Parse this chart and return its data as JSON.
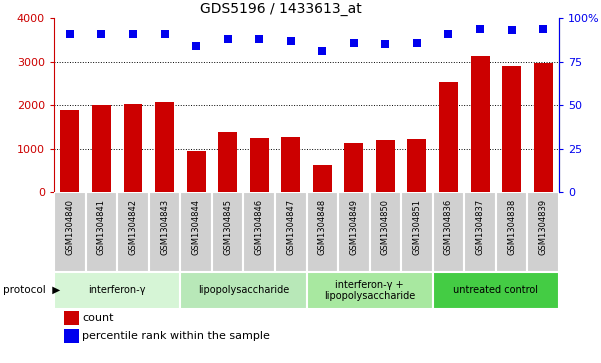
{
  "title": "GDS5196 / 1433613_at",
  "samples": [
    "GSM1304840",
    "GSM1304841",
    "GSM1304842",
    "GSM1304843",
    "GSM1304844",
    "GSM1304845",
    "GSM1304846",
    "GSM1304847",
    "GSM1304848",
    "GSM1304849",
    "GSM1304850",
    "GSM1304851",
    "GSM1304836",
    "GSM1304837",
    "GSM1304838",
    "GSM1304839"
  ],
  "counts": [
    1880,
    2000,
    2040,
    2080,
    940,
    1380,
    1240,
    1270,
    620,
    1140,
    1200,
    1230,
    2540,
    3130,
    2900,
    2980
  ],
  "percentiles": [
    91,
    91,
    91,
    91,
    84,
    88,
    88,
    87,
    81,
    86,
    85,
    86,
    91,
    94,
    93,
    94
  ],
  "groups": [
    {
      "label": "interferon-γ",
      "start": 0,
      "end": 4,
      "color": "#d6f5d6"
    },
    {
      "label": "lipopolysaccharide",
      "start": 4,
      "end": 8,
      "color": "#b8e8b8"
    },
    {
      "label": "interferon-γ +\nlipopolysaccharide",
      "start": 8,
      "end": 12,
      "color": "#a8e8a0"
    },
    {
      "label": "untreated control",
      "start": 12,
      "end": 16,
      "color": "#44cc44"
    }
  ],
  "bar_color": "#cc0000",
  "dot_color": "#0000ee",
  "left_ylim": [
    0,
    4000
  ],
  "right_ylim": [
    0,
    100
  ],
  "left_yticks": [
    0,
    1000,
    2000,
    3000,
    4000
  ],
  "right_yticks": [
    0,
    25,
    50,
    75,
    100
  ],
  "right_yticklabels": [
    "0",
    "25",
    "50",
    "75",
    "100%"
  ],
  "grid_values": [
    1000,
    2000,
    3000
  ],
  "sample_box_color": "#d0d0d0",
  "sample_box_edge": "#ffffff"
}
